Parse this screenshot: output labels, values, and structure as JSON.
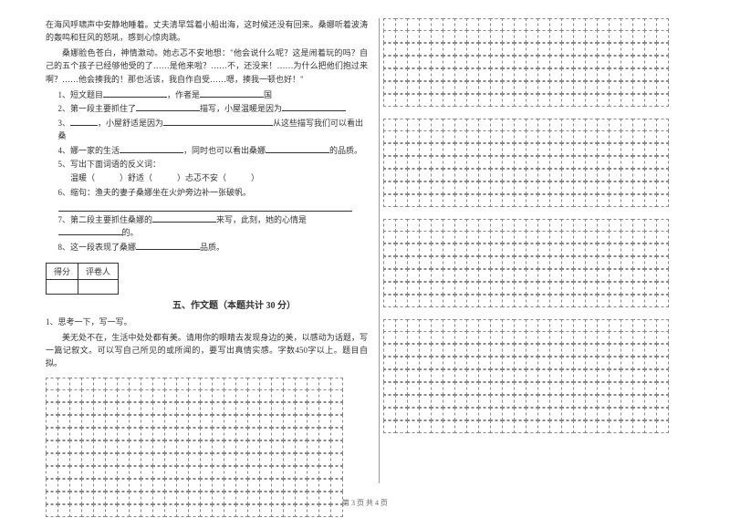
{
  "passage": {
    "p1": "在海风呼啸声中安静地睡着。丈夫清早驾着小船出海，这时候还没有回来。桑娜听着波涛的轰鸣和狂风的怒吼，感到心惊肉跳。",
    "p2": "桑娜脸色苍白，神情激动。她忐忑不安地想：\"他会说什么呢？这是闹着玩的吗？自己的五个孩子已经够他受的了……是他来啦？……不，还没来！……为什么把他们抱过来啊？……他会揍我的！那也活该，我自作自受……嗯，揍我一顿也好！\""
  },
  "questions": {
    "q1_label": "1、短文题目",
    "q1_mid": "，作者是",
    "q1_end": "国",
    "q2_label": "2、第一段主要抓住了",
    "q2_mid": "描写，小屋温暖是因为",
    "q3_label": "3、",
    "q3_text1": "，小屋舒适是因为",
    "q3_text2": "从这些描写我们可以看出桑",
    "q4_label": "4、娜一家的生活",
    "q4_mid": "，同时也可以看出桑娜",
    "q4_end": "的品质。",
    "q5_label": "5、写出下面词语的反义词：",
    "q5_line": "温暖（　　　）舒适（　　　）忐忑不安（　　　）",
    "q6_label": "6、缩句：渔夫的妻子桑娜坐在火炉旁边补一张破帆。",
    "q7_label": "7、第二段主要抓住桑娜的",
    "q7_mid": "来写，此刻，她的心情是",
    "q7_end": "的。",
    "q8_label": "8、这一段表现了桑娜",
    "q8_end": "品质。"
  },
  "score_table": {
    "col1": "得分",
    "col2": "评卷人"
  },
  "section5": {
    "title": "五、作文题（本题共计 30 分）",
    "prompt_label": "1、思考一下，写一写。",
    "prompt_text": "美无处不在，生活中处处都有美。请用你的眼睛去发现身边的美，以感动为话题，写一篇记叙文。可以写自己所见的或所闻的，要写出真情实感。字数450字以上。题目自拟。"
  },
  "footer": "第 3 页 共 4 页",
  "grid": {
    "left_cols": 25,
    "left_rows": 11,
    "right_cols": 24,
    "right_section_rows": [
      7,
      7,
      7,
      9
    ]
  }
}
